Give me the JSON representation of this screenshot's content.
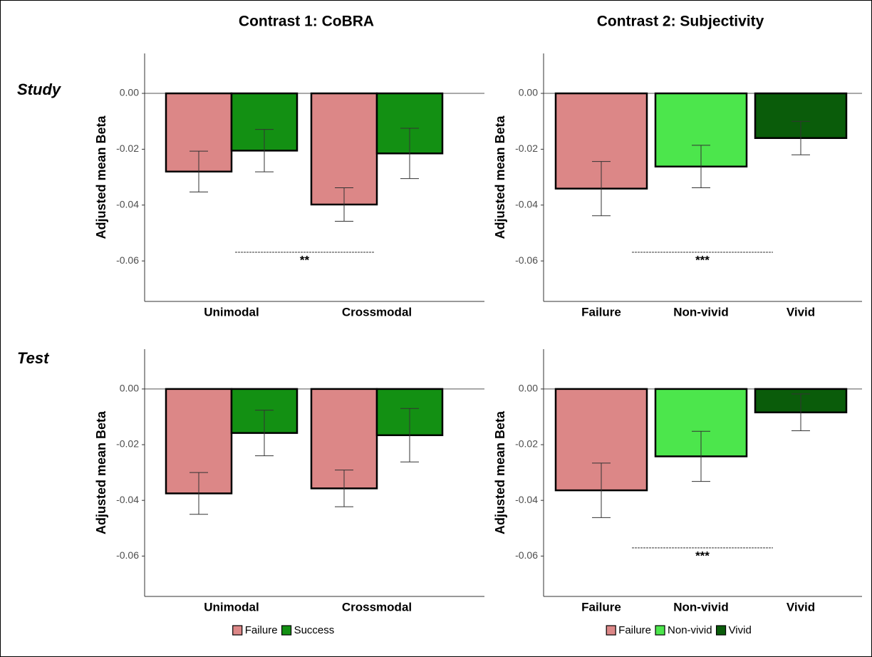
{
  "column_titles": [
    "Contrast 1: CoBRA",
    "Contrast 2: Subjectivity"
  ],
  "row_labels": [
    "Study",
    "Test"
  ],
  "chart_data": [
    {
      "type": "bar",
      "ylabel": "Adjusted mean Beta",
      "categories": [
        "Unimodal",
        "Crossmodal"
      ],
      "series": [
        {
          "name": "Failure",
          "color": "#dc8787",
          "values": [
            -0.028,
            -0.0398
          ],
          "errors": [
            0.0073,
            0.006
          ]
        },
        {
          "name": "Success",
          "color": "#139013",
          "values": [
            -0.0205,
            -0.0215
          ],
          "errors": [
            0.0076,
            0.009
          ]
        }
      ],
      "ylim": [
        -0.0745,
        0.0143
      ],
      "yticks": [
        {
          "value": 0,
          "label": "0.00"
        },
        -0.02,
        -0.04,
        -0.06
      ],
      "significance": "**",
      "legend": false
    },
    {
      "type": "bar",
      "ylabel": "Adjusted mean Beta",
      "categories": [
        "Failure",
        "Non-vivid",
        "Vivid"
      ],
      "colors": [
        "#dc8787",
        "#4ce64c",
        "#0a5c0a"
      ],
      "values": [
        -0.0341,
        -0.0262,
        -0.016
      ],
      "errors": [
        0.0097,
        0.0076,
        0.006
      ],
      "ylim": [
        -0.0745,
        0.0143
      ],
      "yticks": [
        {
          "value": 0,
          "label": "0.00"
        },
        -0.02,
        -0.04,
        -0.06
      ],
      "significance": "***",
      "legend": false
    },
    {
      "type": "bar",
      "ylabel": "Adjusted mean Beta",
      "categories": [
        "Unimodal",
        "Crossmodal"
      ],
      "series": [
        {
          "name": "Failure",
          "color": "#dc8787",
          "values": [
            -0.0375,
            -0.0357
          ],
          "errors": [
            0.0075,
            0.0066
          ]
        },
        {
          "name": "Success",
          "color": "#139013",
          "values": [
            -0.0158,
            -0.0166
          ],
          "errors": [
            0.0082,
            0.0096
          ]
        }
      ],
      "ylim": [
        -0.0745,
        0.0143
      ],
      "yticks": [
        {
          "value": 0,
          "label": "0.00"
        },
        -0.02,
        -0.04,
        -0.06
      ],
      "legend": true
    },
    {
      "type": "bar",
      "ylabel": "Adjusted mean Beta",
      "categories": [
        "Failure",
        "Non-vivid",
        "Vivid"
      ],
      "colors": [
        "#dc8787",
        "#4ce64c",
        "#0a5c0a"
      ],
      "values": [
        -0.0364,
        -0.0242,
        -0.0084
      ],
      "errors": [
        0.0098,
        0.009,
        0.0066
      ],
      "ylim": [
        -0.0745,
        0.0143
      ],
      "yticks": [
        {
          "value": 0,
          "label": "0.00"
        },
        -0.02,
        -0.04,
        -0.06
      ],
      "significance": "***",
      "legend": true
    }
  ]
}
